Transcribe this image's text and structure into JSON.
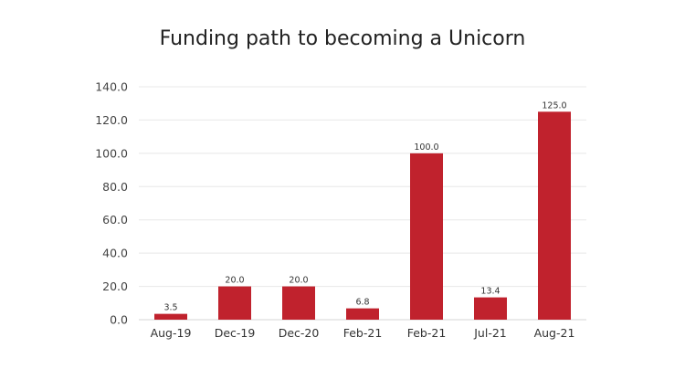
{
  "chart_data": {
    "type": "bar",
    "title": "Funding path to becoming a Unicorn",
    "xlabel": "",
    "ylabel": "",
    "categories": [
      "Aug-19",
      "Dec-19",
      "Dec-20",
      "Feb-21",
      "Feb-21",
      "Jul-21",
      "Aug-21"
    ],
    "values": [
      3.5,
      20.0,
      20.0,
      6.8,
      100.0,
      13.4,
      125.0
    ],
    "value_labels": [
      "3.5",
      "20.0",
      "20.0",
      "6.8",
      "100.0",
      "13.4",
      "125.0"
    ],
    "ylim": [
      0,
      140
    ],
    "yticks": [
      "0.0",
      "20.0",
      "40.0",
      "60.0",
      "80.0",
      "100.0",
      "120.0",
      "140.0"
    ],
    "grid": true,
    "legend": "none",
    "bar_color": "#c0222d"
  }
}
